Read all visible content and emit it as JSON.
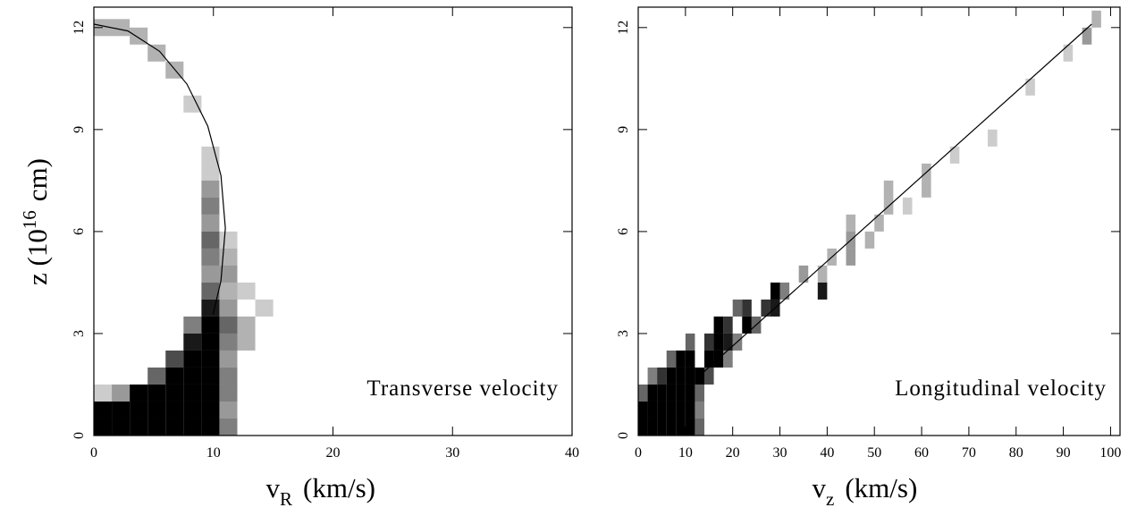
{
  "chart_data": [
    {
      "type": "density",
      "xlim": [
        0,
        40
      ],
      "ylim": [
        0,
        12.6
      ],
      "xticks": [
        0,
        10,
        20,
        30,
        40
      ],
      "yticks": [
        0,
        3,
        6,
        9,
        12
      ],
      "x_label": {
        "text": "v",
        "sub": "R",
        "unit": "(km/s)"
      },
      "y_label": {
        "text": "z (10",
        "sup": "16",
        "unit": "cm)"
      },
      "annotation": "Transverse velocity",
      "density": {
        "bin_width": 1.5,
        "bin_height": 0.5,
        "x": [
          0,
          1.5,
          3,
          4.5,
          6,
          7.5,
          9,
          10.5,
          0,
          1.5,
          3,
          4.5,
          6,
          7.5,
          9,
          10.5,
          0,
          1.5,
          3,
          4.5,
          6,
          7.5,
          9,
          10.5,
          4.5,
          6,
          7.5,
          9,
          10.5,
          6,
          7.5,
          9,
          10.5,
          7.5,
          9,
          10.5,
          12,
          7.5,
          9,
          10.5,
          12,
          9,
          10.5,
          13.5,
          9,
          10.5,
          12,
          9,
          10.5,
          9,
          10.5,
          9,
          10.5,
          9,
          9,
          9,
          9,
          9,
          7.5,
          6,
          4.5,
          3,
          1.5,
          0
        ],
        "y": [
          0,
          0,
          0,
          0,
          0,
          0,
          0,
          0,
          0.5,
          0.5,
          0.5,
          0.5,
          0.5,
          0.5,
          0.5,
          0.5,
          1,
          1,
          1,
          1,
          1,
          1,
          1,
          1,
          1.5,
          1.5,
          1.5,
          1.5,
          1.5,
          2,
          2,
          2,
          2,
          2.5,
          2.5,
          2.5,
          2.5,
          3,
          3,
          3,
          3,
          3.5,
          3.5,
          3.5,
          4,
          4,
          4,
          4.5,
          4.5,
          5,
          5,
          5.5,
          5.5,
          6,
          6.5,
          7,
          7.5,
          8,
          9.5,
          10.5,
          11,
          11.5,
          11.75,
          11.75
        ],
        "level": [
          1,
          1,
          1,
          1,
          1,
          1,
          1,
          0.5,
          1,
          1,
          1,
          1,
          1,
          1,
          1,
          0.4,
          0.2,
          0.4,
          1,
          1,
          1,
          1,
          1,
          0.5,
          0.6,
          1,
          1,
          1,
          0.5,
          0.7,
          1,
          1,
          0.4,
          0.9,
          1,
          0.5,
          0.3,
          0.5,
          1,
          0.6,
          0.3,
          0.9,
          0.4,
          0.2,
          0.6,
          0.3,
          0.2,
          0.4,
          0.4,
          0.5,
          0.3,
          0.6,
          0.2,
          0.4,
          0.5,
          0.4,
          0.2,
          0.2,
          0.2,
          0.3,
          0.3,
          0.3,
          0.3,
          0.3
        ]
      },
      "series": [
        {
          "color": "#000000",
          "x": [
            0,
            2.85,
            5.5,
            7.78,
            9.53,
            10.63,
            11,
            10.63,
            9.97
          ],
          "y": [
            12.1,
            11.9,
            11.3,
            10.34,
            9.1,
            7.65,
            6.1,
            4.55,
            3.56
          ]
        }
      ]
    },
    {
      "type": "density",
      "xlim": [
        0,
        102
      ],
      "ylim": [
        0,
        12.6
      ],
      "xticks": [
        0,
        10,
        20,
        30,
        40,
        50,
        60,
        70,
        80,
        90,
        100
      ],
      "yticks": [
        0,
        3,
        6,
        9,
        12
      ],
      "x_label": {
        "text": "v",
        "sub": "z",
        "unit": "(km/s)"
      },
      "annotation": "Longitudinal velocity",
      "density": {
        "bin_width": 2,
        "bin_height": 0.5,
        "x": [
          0,
          2,
          4,
          6,
          8,
          10,
          12,
          0,
          2,
          4,
          6,
          8,
          10,
          12,
          0,
          2,
          4,
          6,
          8,
          10,
          12,
          2,
          4,
          6,
          8,
          10,
          12,
          14,
          6,
          8,
          10,
          14,
          16,
          18,
          10,
          14,
          16,
          18,
          20,
          16,
          18,
          22,
          24,
          20,
          22,
          26,
          28,
          28,
          30,
          38,
          34,
          38,
          40,
          44,
          44,
          48,
          44,
          50,
          52,
          56,
          52,
          60,
          60,
          66,
          74,
          82,
          90,
          94,
          96
        ],
        "y": [
          0,
          0,
          0,
          0,
          0,
          0,
          0,
          0.5,
          0.5,
          0.5,
          0.5,
          0.5,
          0.5,
          0.5,
          1,
          1,
          1,
          1,
          1,
          1,
          1,
          1.5,
          1.5,
          1.5,
          1.5,
          1.5,
          1.5,
          1.5,
          2,
          2,
          2,
          2,
          2,
          2,
          2.5,
          2.5,
          2.5,
          2.5,
          2.5,
          3,
          3,
          3,
          3,
          3.5,
          3.5,
          3.5,
          3.5,
          4,
          4,
          4,
          4.5,
          4.5,
          5,
          5,
          5.5,
          5.5,
          6,
          6,
          6.5,
          6.5,
          7,
          7,
          7.5,
          8,
          8.5,
          10,
          11,
          11.5,
          12
        ],
        "level": [
          1,
          1,
          1,
          1,
          1,
          1,
          0.6,
          1,
          1,
          1,
          1,
          1,
          1,
          0.5,
          0.6,
          1,
          1,
          1,
          1,
          1,
          0.6,
          0.5,
          0.8,
          1,
          1,
          1,
          1,
          0.7,
          0.6,
          1,
          1,
          1,
          1,
          0.5,
          0.6,
          0.8,
          1,
          0.9,
          0.5,
          1,
          0.8,
          1,
          0.6,
          0.6,
          0.8,
          0.8,
          0.9,
          1,
          0.5,
          0.9,
          0.4,
          0.3,
          0.3,
          0.4,
          0.4,
          0.3,
          0.3,
          0.3,
          0.3,
          0.2,
          0.3,
          0.3,
          0.3,
          0.2,
          0.2,
          0.2,
          0.2,
          0.4,
          0.3
        ]
      },
      "series": [
        {
          "color": "#000000",
          "x": [
            12.5,
            96
          ],
          "y": [
            1.7,
            12.1
          ]
        }
      ]
    }
  ]
}
